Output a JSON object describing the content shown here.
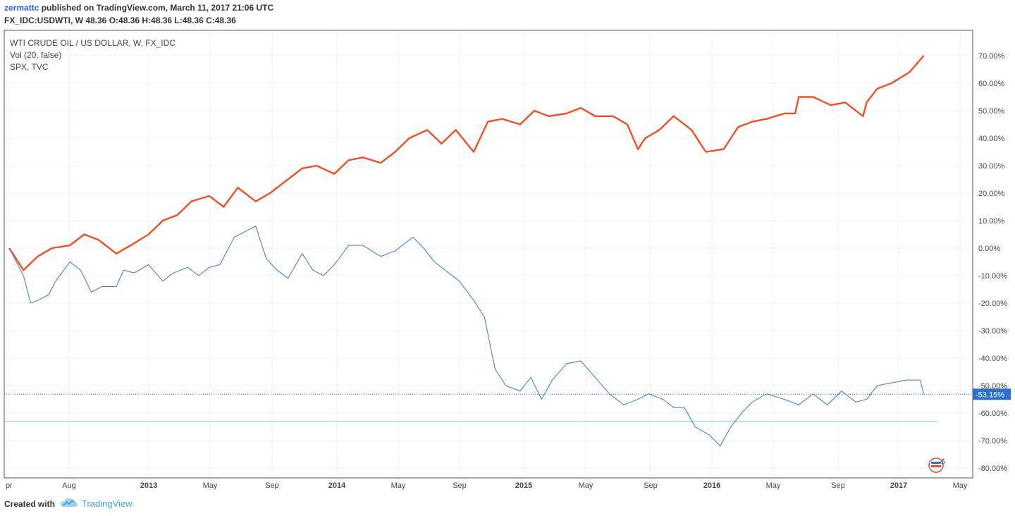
{
  "header": {
    "author": "zermattc",
    "published": "published on TradingView.com, March 11, 2017 21:06 UTC",
    "symbol_line": "FX_IDC:USDWTI, W  48.36 O:48.36 H:48.36 L:48.36 C:48.36"
  },
  "footer": {
    "created_with": "Created with",
    "brand": "TradingView"
  },
  "badge": "6",
  "chart_data": {
    "type": "line",
    "legend": [
      "WTI CRUDE OIL / US DOLLAR, W, FX_IDC",
      "Vol (20, false)",
      "SPX, TVC"
    ],
    "x_ticks": [
      "pr",
      "Aug",
      "2013",
      "May",
      "Sep",
      "2014",
      "May",
      "Sep",
      "2015",
      "May",
      "Sep",
      "2016",
      "May",
      "Sep",
      "2017",
      "May"
    ],
    "y_ticks": [
      "70.00%",
      "60.00%",
      "50.00%",
      "40.00%",
      "30.00%",
      "20.00%",
      "10.00%",
      "0.00%",
      "-10.00%",
      "-20.00%",
      "-30.00%",
      "-40.00%",
      "-50.00%",
      "-60.00%",
      "-70.00%",
      "-80.00%"
    ],
    "ylim": [
      -82,
      78
    ],
    "last_value_label": "-53.15%",
    "last_value": -53.15,
    "reference_line": -63,
    "series": [
      {
        "name": "SPX, TVC",
        "color": "#f04e23",
        "x": [
          "2012-04-09",
          "2012-05-07",
          "2012-06-04",
          "2012-07-02",
          "2012-08-06",
          "2012-09-03",
          "2012-10-01",
          "2012-11-05",
          "2012-12-03",
          "2013-01-07",
          "2013-02-04",
          "2013-03-04",
          "2013-04-01",
          "2013-05-06",
          "2013-06-03",
          "2013-07-01",
          "2013-08-05",
          "2013-09-02",
          "2013-10-07",
          "2013-11-04",
          "2013-12-02",
          "2014-01-06",
          "2014-02-03",
          "2014-03-03",
          "2014-04-07",
          "2014-05-05",
          "2014-06-02",
          "2014-07-07",
          "2014-08-04",
          "2014-09-01",
          "2014-10-06",
          "2014-11-03",
          "2014-12-01",
          "2015-01-05",
          "2015-02-02",
          "2015-03-02",
          "2015-04-06",
          "2015-05-04",
          "2015-06-01",
          "2015-07-06",
          "2015-08-03",
          "2015-08-24",
          "2015-09-07",
          "2015-10-05",
          "2015-11-02",
          "2015-12-07",
          "2016-01-04",
          "2016-02-08",
          "2016-03-07",
          "2016-04-04",
          "2016-05-02",
          "2016-06-06",
          "2016-06-27",
          "2016-07-04",
          "2016-08-01",
          "2016-09-05",
          "2016-10-03",
          "2016-11-07",
          "2016-11-14",
          "2016-12-05",
          "2017-01-02",
          "2017-02-06",
          "2017-03-06"
        ],
        "y": [
          0,
          -8,
          -3,
          0,
          1,
          5,
          3,
          -2,
          1,
          5,
          10,
          12,
          17,
          19,
          15,
          22,
          17,
          20,
          25,
          29,
          30,
          27,
          32,
          33,
          31,
          35,
          40,
          43,
          38,
          43,
          35,
          46,
          47,
          45,
          50,
          48,
          49,
          51,
          48,
          48,
          45,
          36,
          40,
          43,
          48,
          43,
          35,
          36,
          44,
          46,
          47,
          49,
          49,
          55,
          55,
          52,
          53,
          48,
          53,
          58,
          60,
          64,
          70
        ]
      },
      {
        "name": "WTI CRUDE OIL / US DOLLAR, W, FX_IDC",
        "color": "#4a7fd0",
        "x": [
          "2012-04-09",
          "2012-05-07",
          "2012-05-21",
          "2012-06-04",
          "2012-06-25",
          "2012-07-09",
          "2012-08-06",
          "2012-08-27",
          "2012-09-17",
          "2012-10-08",
          "2012-11-05",
          "2012-11-19",
          "2012-12-10",
          "2013-01-07",
          "2013-02-04",
          "2013-02-25",
          "2013-03-25",
          "2013-04-15",
          "2013-05-06",
          "2013-05-27",
          "2013-06-24",
          "2013-07-15",
          "2013-08-05",
          "2013-08-26",
          "2013-09-16",
          "2013-10-07",
          "2013-11-04",
          "2013-11-25",
          "2013-12-16",
          "2014-01-06",
          "2014-02-03",
          "2014-03-03",
          "2014-04-07",
          "2014-05-05",
          "2014-06-09",
          "2014-06-30",
          "2014-07-21",
          "2014-08-11",
          "2014-09-08",
          "2014-10-06",
          "2014-10-27",
          "2014-11-17",
          "2014-12-08",
          "2015-01-05",
          "2015-01-26",
          "2015-02-16",
          "2015-03-09",
          "2015-04-06",
          "2015-05-04",
          "2015-06-01",
          "2015-06-29",
          "2015-07-27",
          "2015-08-24",
          "2015-09-14",
          "2015-10-12",
          "2015-11-02",
          "2015-11-23",
          "2015-12-14",
          "2016-01-11",
          "2016-02-01",
          "2016-02-22",
          "2016-03-14",
          "2016-04-04",
          "2016-05-02",
          "2016-06-06",
          "2016-07-04",
          "2016-08-01",
          "2016-08-29",
          "2016-09-26",
          "2016-10-24",
          "2016-11-14",
          "2016-12-05",
          "2017-01-02",
          "2017-01-30",
          "2017-02-27",
          "2017-03-06"
        ],
        "y": [
          0,
          -10,
          -20,
          -19,
          -17,
          -12,
          -5,
          -8,
          -16,
          -14,
          -14,
          -8,
          -9,
          -6,
          -12,
          -9,
          -7,
          -10,
          -7,
          -6,
          4,
          6,
          8,
          -4,
          -8,
          -11,
          -2,
          -8,
          -10,
          -6,
          1,
          1,
          -3,
          -1,
          4,
          0,
          -5,
          -8,
          -12,
          -19,
          -25,
          -44,
          -50,
          -52,
          -47,
          -55,
          -48,
          -42,
          -41,
          -47,
          -53,
          -57,
          -55,
          -53,
          -55,
          -58,
          -58,
          -65,
          -68,
          -72,
          -65,
          -60,
          -56,
          -53,
          -55,
          -57,
          -53,
          -57,
          -52,
          -56,
          -55,
          -50,
          -49,
          -48,
          -48,
          -53.15
        ]
      }
    ]
  }
}
